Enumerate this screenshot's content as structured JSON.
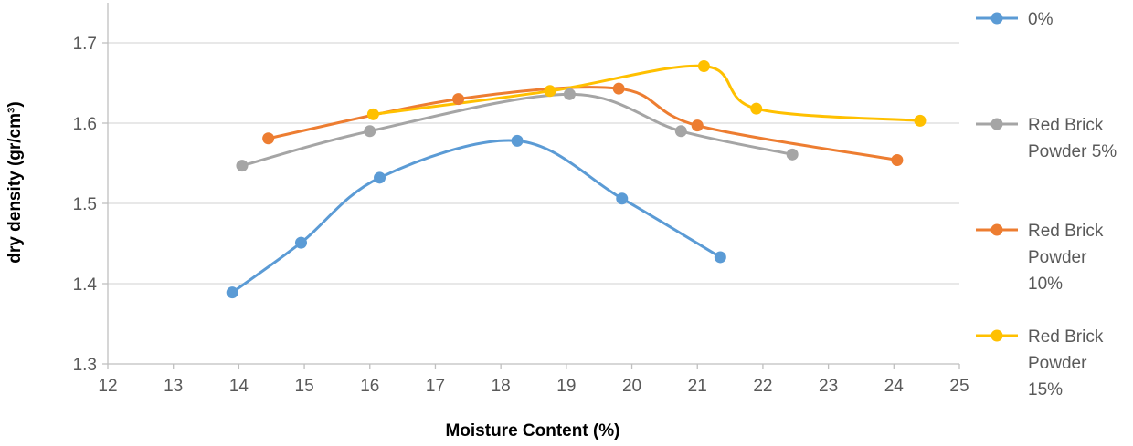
{
  "chart_data": {
    "type": "line",
    "xlabel": "Moisture Content (%)",
    "ylabel": "dry density (gr/cm³)",
    "xlim": [
      12,
      25
    ],
    "ylim": [
      1.3,
      1.75
    ],
    "x_ticks": [
      12,
      13,
      14,
      15,
      16,
      17,
      18,
      19,
      20,
      21,
      22,
      23,
      24,
      25
    ],
    "y_ticks": [
      1.3,
      1.4,
      1.5,
      1.6,
      1.7
    ],
    "y_tick_labels": [
      "1.3",
      "1.4",
      "1.5",
      "1.6",
      "1.7"
    ],
    "grid": "horizontal",
    "legend": "right",
    "series": [
      {
        "name": "0%",
        "legend_lines": [
          "0%"
        ],
        "color": "#5B9BD5",
        "points": [
          [
            13.9,
            1.389
          ],
          [
            14.95,
            1.451
          ],
          [
            16.15,
            1.532
          ],
          [
            18.25,
            1.578
          ],
          [
            19.85,
            1.506
          ],
          [
            21.35,
            1.433
          ]
        ]
      },
      {
        "name": "Red Brick Powder 5%",
        "legend_lines": [
          "Red Brick",
          "Powder 5%"
        ],
        "color": "#A5A5A5",
        "points": [
          [
            14.05,
            1.547
          ],
          [
            16.0,
            1.59
          ],
          [
            19.05,
            1.636
          ],
          [
            20.75,
            1.59
          ],
          [
            22.45,
            1.561
          ]
        ]
      },
      {
        "name": "Red Brick Powder 10%",
        "legend_lines": [
          "Red Brick",
          "Powder",
          "10%"
        ],
        "color": "#ED7D31",
        "points": [
          [
            14.45,
            1.581
          ],
          [
            17.35,
            1.63
          ],
          [
            19.8,
            1.643
          ],
          [
            21.0,
            1.597
          ],
          [
            24.05,
            1.554
          ]
        ]
      },
      {
        "name": "Red Brick Powder 15%",
        "legend_lines": [
          "Red Brick",
          "Powder",
          "15%"
        ],
        "color": "#FFC000",
        "points": [
          [
            16.05,
            1.611
          ],
          [
            18.75,
            1.64
          ],
          [
            21.1,
            1.671
          ],
          [
            21.9,
            1.618
          ],
          [
            24.4,
            1.603
          ]
        ]
      }
    ]
  }
}
